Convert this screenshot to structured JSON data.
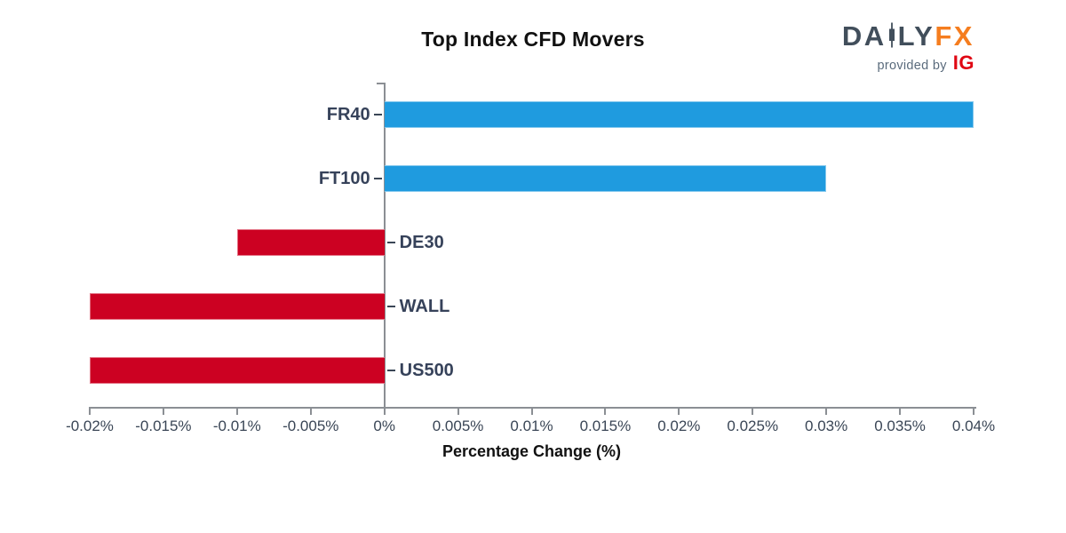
{
  "header": {
    "title": "Top Index CFD Movers"
  },
  "logo": {
    "part1": "DA",
    "part2": "LY",
    "part3": "FX",
    "tagline": "provided by",
    "ig": "IG",
    "slate": "#414e5b",
    "orange": "#f57d1f",
    "red": "#e00713",
    "gray": "#5a6b7c"
  },
  "chart_data": {
    "type": "bar",
    "orientation": "horizontal",
    "title": "Top Index CFD Movers",
    "xlabel": "Percentage Change (%)",
    "ylabel": "",
    "categories": [
      "FR40",
      "FT100",
      "DE30",
      "WALL",
      "US500"
    ],
    "values": [
      0.04,
      0.03,
      -0.01,
      -0.02,
      -0.02
    ],
    "xlim": [
      -0.02,
      0.04
    ],
    "tick_values": [
      -0.02,
      -0.015,
      -0.01,
      -0.005,
      0,
      0.005,
      0.01,
      0.015,
      0.02,
      0.025,
      0.03,
      0.035,
      0.04
    ],
    "tick_labels": [
      "-0.02%",
      "-0.015%",
      "-0.01%",
      "-0.005%",
      "0%",
      "0.005%",
      "0.01%",
      "0.015%",
      "0.02%",
      "0.025%",
      "0.03%",
      "0.035%",
      "0.04%"
    ],
    "grid": false,
    "legend": null,
    "colors": {
      "positive": "#1f9bdf",
      "negative": "#cc0122",
      "axis": "#8b8f94",
      "tick_text": "#3a4656",
      "category_text": "#36425a",
      "title_text": "#111111"
    }
  }
}
